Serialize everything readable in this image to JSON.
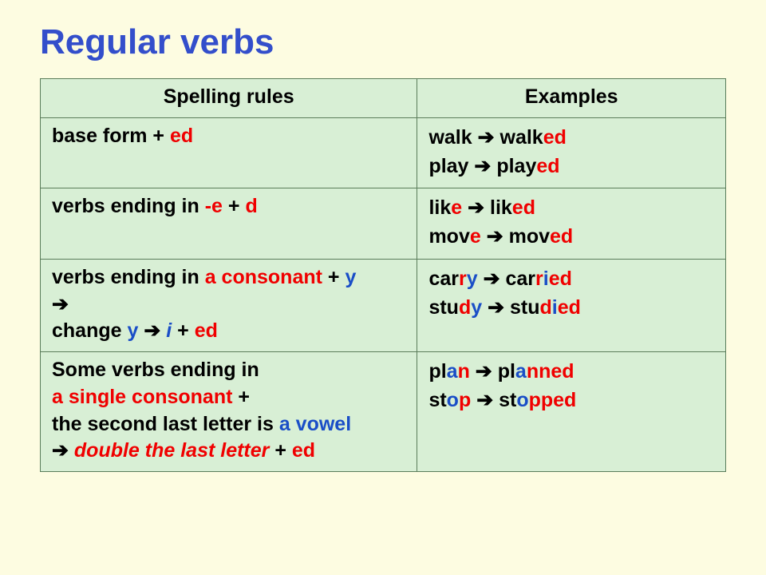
{
  "colors": {
    "page_bg": "#fdfce1",
    "table_bg": "#d8efd5",
    "border": "#5b7d5a",
    "title": "#334ecb",
    "text": "#000000",
    "red": "#f00000",
    "blue": "#1a4ec7"
  },
  "title": "Regular verbs",
  "headers": {
    "rules": "Spelling rules",
    "examples": "Examples"
  },
  "rows": [
    {
      "rule": {
        "parts": [
          {
            "t": "base form  + ",
            "c": "black"
          },
          {
            "t": " ed",
            "c": "red"
          }
        ]
      },
      "examples": [
        [
          {
            "t": "walk ",
            "c": "black"
          },
          {
            "t": "➔",
            "c": "black"
          },
          {
            "t": " walk",
            "c": "black"
          },
          {
            "t": "ed",
            "c": "red"
          }
        ],
        [
          {
            "t": "play ",
            "c": "black"
          },
          {
            "t": "➔",
            "c": "black"
          },
          {
            "t": " play",
            "c": "black"
          },
          {
            "t": "ed",
            "c": "red"
          }
        ]
      ]
    },
    {
      "rule": {
        "parts": [
          {
            "t": "verbs ending in ",
            "c": "black"
          },
          {
            "t": "-e",
            "c": "red"
          },
          {
            "t": "  + ",
            "c": "black"
          },
          {
            "t": "d",
            "c": "red"
          }
        ]
      },
      "examples": [
        [
          {
            "t": "lik",
            "c": "black"
          },
          {
            "t": "e",
            "c": "red"
          },
          {
            "t": " ",
            "c": "black"
          },
          {
            "t": "➔",
            "c": "black"
          },
          {
            "t": " lik",
            "c": "black"
          },
          {
            "t": "ed",
            "c": "red"
          }
        ],
        [
          {
            "t": "mov",
            "c": "black"
          },
          {
            "t": "e",
            "c": "red"
          },
          {
            "t": " ",
            "c": "black"
          },
          {
            "t": "➔",
            "c": "black"
          },
          {
            "t": " mov",
            "c": "black"
          },
          {
            "t": "ed",
            "c": "red"
          }
        ]
      ]
    },
    {
      "rule": {
        "lines": [
          [
            {
              "t": "verbs ending in ",
              "c": "black"
            },
            {
              "t": "a consonant",
              "c": "red"
            },
            {
              "t": " +  ",
              "c": "black"
            },
            {
              "t": "y",
              "c": "blue"
            }
          ],
          [
            {
              "t": "      ",
              "c": "black"
            },
            {
              "t": "➔",
              "c": "black"
            }
          ],
          [
            {
              "t": " change ",
              "c": "black"
            },
            {
              "t": "y",
              "c": "blue"
            },
            {
              "t": "  ",
              "c": "black"
            },
            {
              "t": "➔",
              "c": "black"
            },
            {
              "t": "  ",
              "c": "black"
            },
            {
              "t": "i",
              "c": "blue",
              "i": true
            },
            {
              "t": "  + ",
              "c": "black"
            },
            {
              "t": " ed",
              "c": "red"
            }
          ]
        ]
      },
      "examples": [
        [
          {
            "t": "car",
            "c": "black"
          },
          {
            "t": "r",
            "c": "red"
          },
          {
            "t": "y",
            "c": "blue"
          },
          {
            "t": " ",
            "c": "black"
          },
          {
            "t": "➔",
            "c": "black"
          },
          {
            "t": " car",
            "c": "black"
          },
          {
            "t": "r",
            "c": "red"
          },
          {
            "t": "i",
            "c": "blue"
          },
          {
            "t": "ed",
            "c": "red"
          }
        ],
        [
          {
            "t": "stu",
            "c": "black"
          },
          {
            "t": "d",
            "c": "red"
          },
          {
            "t": "y",
            "c": "blue"
          },
          {
            "t": " ",
            "c": "black"
          },
          {
            "t": "➔",
            "c": "black"
          },
          {
            "t": " stu",
            "c": "black"
          },
          {
            "t": "d",
            "c": "red"
          },
          {
            "t": "i",
            "c": "blue"
          },
          {
            "t": "ed",
            "c": "red"
          }
        ]
      ]
    },
    {
      "rule": {
        "lines": [
          [
            {
              "t": "Some verbs ending in",
              "c": "black"
            }
          ],
          [
            {
              "t": "a single consonant",
              "c": "red"
            },
            {
              "t": " +",
              "c": "black"
            }
          ],
          [
            {
              "t": "the second last letter is ",
              "c": "black"
            },
            {
              "t": "a vowel",
              "c": "blue"
            }
          ],
          [
            {
              "t": "➔",
              "c": "black"
            },
            {
              "t": "  double the last letter",
              "c": "red",
              "i": true
            },
            {
              "t": "   + ",
              "c": "black"
            },
            {
              "t": " ed",
              "c": "red"
            }
          ]
        ]
      },
      "examples": [
        [
          {
            "t": "pl",
            "c": "black"
          },
          {
            "t": "a",
            "c": "blue"
          },
          {
            "t": "n",
            "c": "red"
          },
          {
            "t": " ",
            "c": "black"
          },
          {
            "t": "➔",
            "c": "black"
          },
          {
            "t": " pl",
            "c": "black"
          },
          {
            "t": "a",
            "c": "blue"
          },
          {
            "t": "nn",
            "c": "red"
          },
          {
            "t": "ed",
            "c": "red"
          }
        ],
        [
          {
            "t": "st",
            "c": "black"
          },
          {
            "t": "o",
            "c": "blue"
          },
          {
            "t": "p",
            "c": "red"
          },
          {
            "t": " ",
            "c": "black"
          },
          {
            "t": "➔",
            "c": "black"
          },
          {
            "t": " st",
            "c": "black"
          },
          {
            "t": "o",
            "c": "blue"
          },
          {
            "t": "pp",
            "c": "red"
          },
          {
            "t": "ed",
            "c": "red"
          }
        ]
      ]
    }
  ]
}
